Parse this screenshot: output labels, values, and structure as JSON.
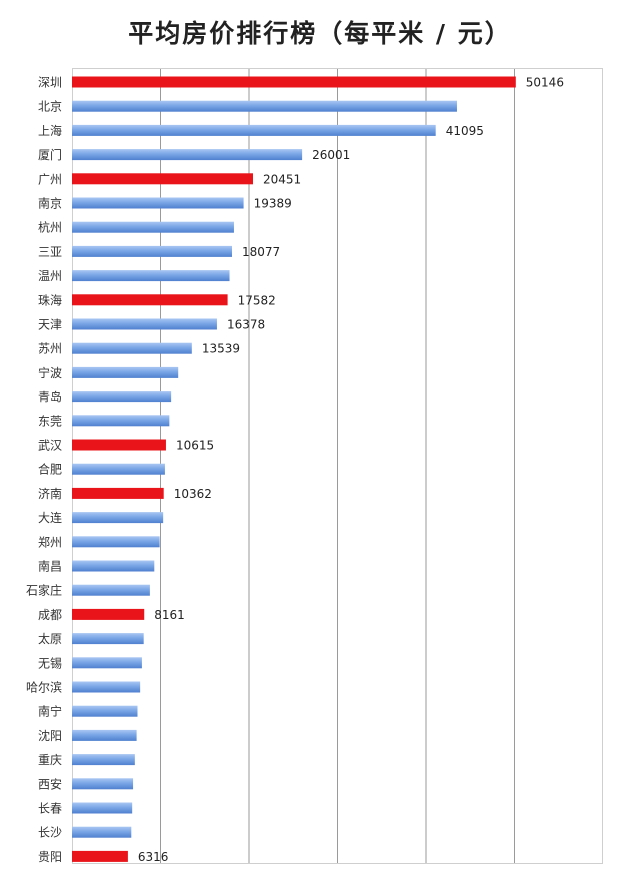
{
  "chart_data": {
    "type": "bar",
    "orientation": "horizontal",
    "title": "平均房价排行榜（每平米 / 元）",
    "xlabel": "",
    "ylabel": "",
    "xlim": [
      0,
      60000
    ],
    "grid": true,
    "legend": "none",
    "colors": {
      "default": "#6f9fe0",
      "highlight": "#e8141a",
      "grid": "#9a9a9a"
    },
    "categories": [
      "深圳",
      "北京",
      "上海",
      "厦门",
      "广州",
      "南京",
      "杭州",
      "三亚",
      "温州",
      "珠海",
      "天津",
      "苏州",
      "宁波",
      "青岛",
      "东莞",
      "武汉",
      "合肥",
      "济南",
      "大连",
      "郑州",
      "南昌",
      "石家庄",
      "成都",
      "太原",
      "无锡",
      "哈尔滨",
      "南宁",
      "沈阳",
      "重庆",
      "西安",
      "长春",
      "长沙",
      "贵阳"
    ],
    "values": [
      50146,
      43500,
      41095,
      26001,
      20451,
      19389,
      18300,
      18077,
      17800,
      17582,
      16378,
      13539,
      12000,
      11200,
      11000,
      10615,
      10500,
      10362,
      10300,
      9900,
      9300,
      8800,
      8161,
      8100,
      7900,
      7700,
      7400,
      7300,
      7100,
      6900,
      6800,
      6700,
      6316
    ],
    "highlighted": [
      "深圳",
      "广州",
      "珠海",
      "武汉",
      "济南",
      "成都",
      "贵阳"
    ],
    "data_labels": [
      {
        "category": "深圳",
        "text": "50146"
      },
      {
        "category": "上海",
        "text": "41095"
      },
      {
        "category": "厦门",
        "text": "26001"
      },
      {
        "category": "广州",
        "text": "20451"
      },
      {
        "category": "南京",
        "text": "19389"
      },
      {
        "category": "三亚",
        "text": "18077"
      },
      {
        "category": "珠海",
        "text": "17582"
      },
      {
        "category": "天津",
        "text": "16378"
      },
      {
        "category": "苏州",
        "text": "13539"
      },
      {
        "category": "武汉",
        "text": "10615"
      },
      {
        "category": "济南",
        "text": "10362"
      },
      {
        "category": "成都",
        "text": "8161"
      },
      {
        "category": "贵阳",
        "text": "6316"
      }
    ]
  }
}
